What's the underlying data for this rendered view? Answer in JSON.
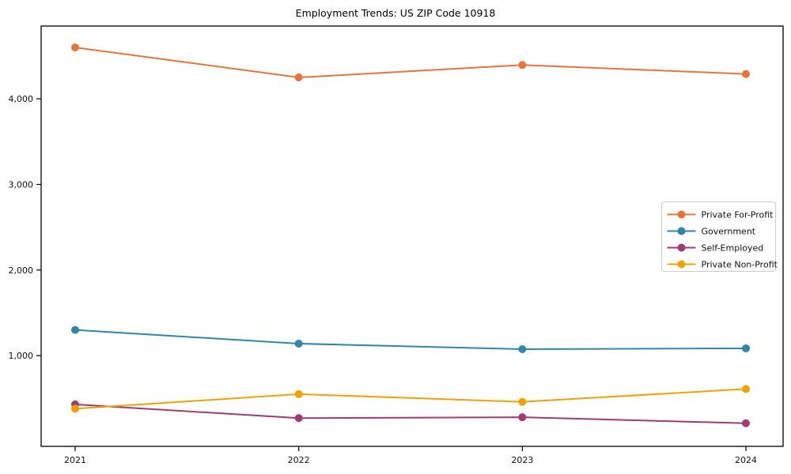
{
  "page": {
    "title": "Employment Trends: US ZIP Code 10918"
  },
  "chart_data": {
    "type": "line",
    "title": "Employment Trends: US ZIP Code 10918",
    "x": [
      "2021",
      "2022",
      "2023",
      "2024"
    ],
    "series": [
      {
        "name": "Private For-Profit",
        "color": "#e8743b",
        "values": [
          4600,
          4250,
          4395,
          4290
        ]
      },
      {
        "name": "Government",
        "color": "#2e86ab",
        "values": [
          1300,
          1140,
          1075,
          1085
        ]
      },
      {
        "name": "Self-Employed",
        "color": "#a23b72",
        "values": [
          430,
          270,
          280,
          210
        ]
      },
      {
        "name": "Private Non-Profit",
        "color": "#f2a104",
        "values": [
          380,
          550,
          460,
          610
        ]
      }
    ],
    "xlabel": "",
    "ylabel": "",
    "ylim": [
      -60,
      4850
    ],
    "yticks": [
      1000,
      2000,
      3000,
      4000
    ],
    "ytick_labels": [
      "1,000",
      "2,000",
      "3,000",
      "4,000"
    ],
    "grid": false,
    "legend_position": "right",
    "axis_color": "#000000",
    "tick_label_color": "#111111",
    "legend_border_color": "#cccccc",
    "background_color": "#ffffff"
  }
}
